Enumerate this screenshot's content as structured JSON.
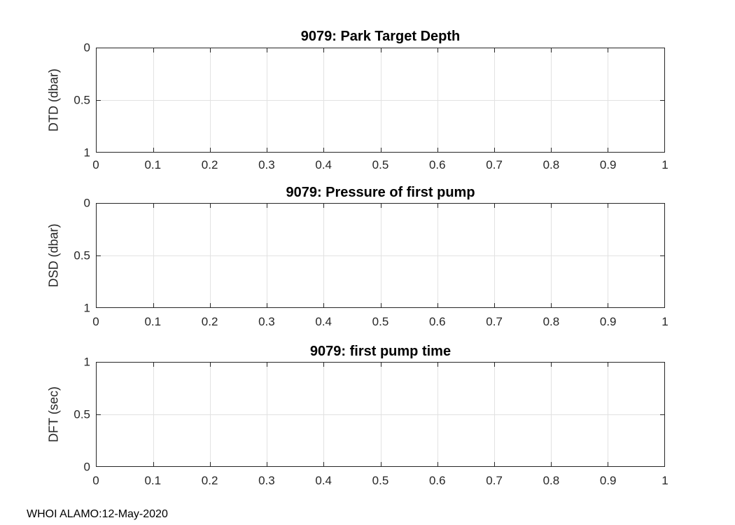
{
  "figure": {
    "footer": "WHOI ALAMO:12-May-2020"
  },
  "colors": {
    "axis_color": "#262626",
    "grid_color": "#e2e2e2",
    "background": "#ffffff"
  },
  "chart_data": [
    {
      "type": "line",
      "title": "9079: Park Target Depth",
      "ylabel": "DTD (dbar)",
      "xlim": [
        0,
        1
      ],
      "ylim": [
        0,
        1
      ],
      "ydir": "reverse",
      "xticks": [
        "0",
        "0.1",
        "0.2",
        "0.3",
        "0.4",
        "0.5",
        "0.6",
        "0.7",
        "0.8",
        "0.9",
        "1"
      ],
      "yticks": [
        "0",
        "0.5",
        "1"
      ],
      "grid": true,
      "legend": null,
      "series": []
    },
    {
      "type": "line",
      "title": "9079: Pressure of first pump",
      "ylabel": "DSD (dbar)",
      "xlim": [
        0,
        1
      ],
      "ylim": [
        0,
        1
      ],
      "ydir": "reverse",
      "xticks": [
        "0",
        "0.1",
        "0.2",
        "0.3",
        "0.4",
        "0.5",
        "0.6",
        "0.7",
        "0.8",
        "0.9",
        "1"
      ],
      "yticks": [
        "0",
        "0.5",
        "1"
      ],
      "grid": true,
      "legend": null,
      "series": []
    },
    {
      "type": "line",
      "title": "9079: first pump time",
      "ylabel": "DFT (sec)",
      "xlim": [
        0,
        1
      ],
      "ylim": [
        0,
        1
      ],
      "ydir": "normal",
      "xticks": [
        "0",
        "0.1",
        "0.2",
        "0.3",
        "0.4",
        "0.5",
        "0.6",
        "0.7",
        "0.8",
        "0.9",
        "1"
      ],
      "yticks": [
        "0",
        "0.5",
        "1"
      ],
      "grid": true,
      "legend": null,
      "series": []
    }
  ]
}
